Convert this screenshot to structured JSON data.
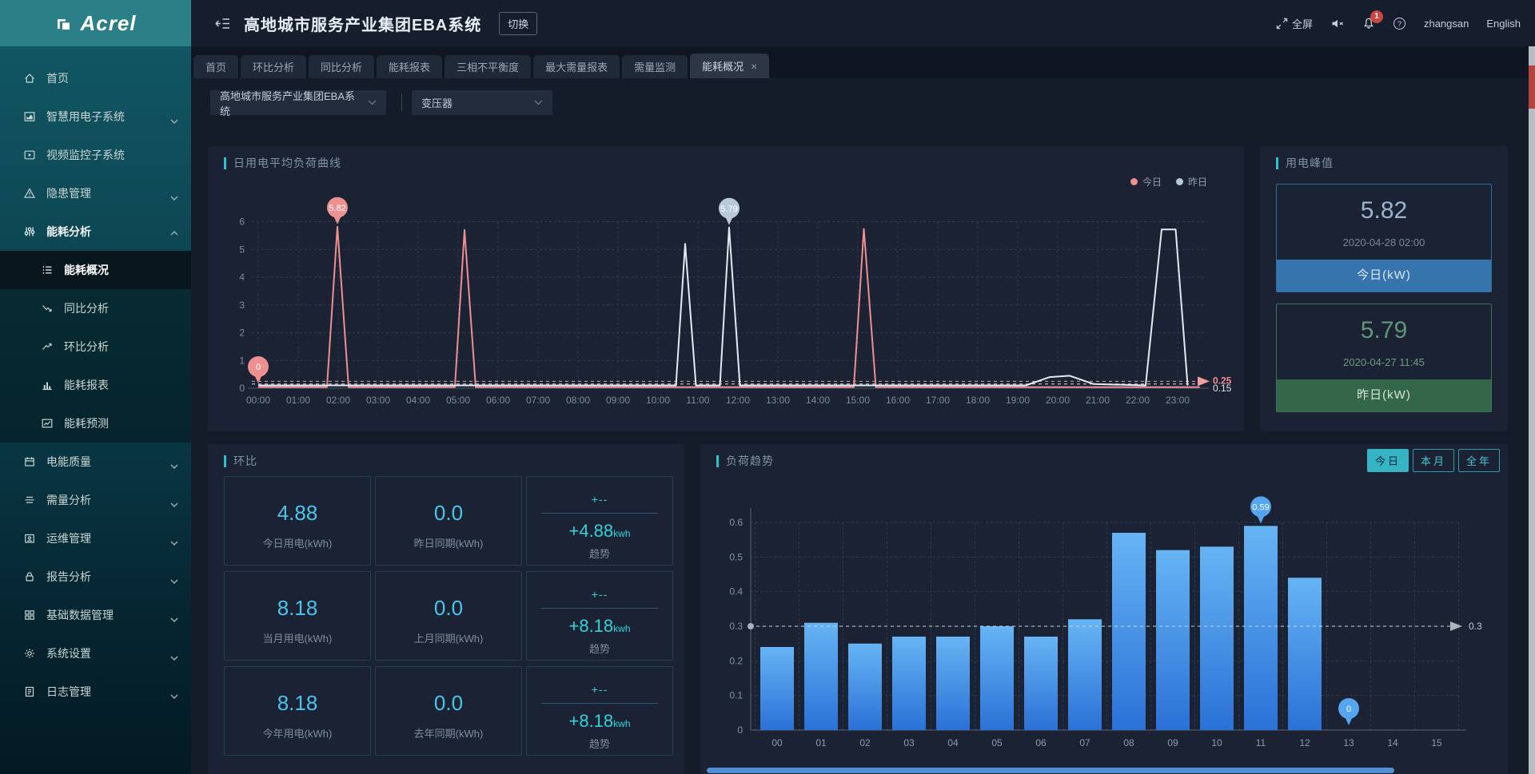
{
  "brand": {
    "name": "Acrel"
  },
  "header": {
    "title": "高地城市服务产业集团EBA系统",
    "switch_label": "切换",
    "fullscreen_label": "全屏",
    "notification_count": "1",
    "username": "zhangsan",
    "language": "English"
  },
  "tabs": [
    {
      "key": "home",
      "label": "首页"
    },
    {
      "key": "mom-analysis",
      "label": "环比分析"
    },
    {
      "key": "yoy-analysis",
      "label": "同比分析"
    },
    {
      "key": "energy-report",
      "label": "能耗报表"
    },
    {
      "key": "three-phase-imbalance",
      "label": "三相不平衡度"
    },
    {
      "key": "max-demand-report",
      "label": "最大需量报表"
    },
    {
      "key": "demand-monitor",
      "label": "需量监测"
    },
    {
      "key": "energy-overview",
      "label": "能耗概况",
      "active": true,
      "closable": true
    }
  ],
  "filters": [
    {
      "key": "system",
      "value": "高地城市服务产业集团EBA系统"
    },
    {
      "key": "device",
      "value": "变压器"
    }
  ],
  "sidebar": {
    "items": [
      {
        "key": "home",
        "icon": "home",
        "label": "首页"
      },
      {
        "key": "smart-power",
        "icon": "area-chart",
        "label": "智慧用电子系统",
        "expandable": true
      },
      {
        "key": "video-monitor",
        "icon": "video",
        "label": "视频监控子系统"
      },
      {
        "key": "hazard",
        "icon": "warning",
        "label": "隐患管理",
        "expandable": true
      },
      {
        "key": "energy-analysis",
        "icon": "equalizer",
        "label": "能耗分析",
        "expandable": true,
        "expanded": true,
        "children": [
          {
            "key": "energy-overview",
            "icon": "list",
            "label": "能耗概况",
            "active": true
          },
          {
            "key": "yoy-analysis",
            "icon": "trend-down",
            "label": "同比分析"
          },
          {
            "key": "mom-analysis",
            "icon": "trend-up",
            "label": "环比分析"
          },
          {
            "key": "energy-report",
            "icon": "bar-chart",
            "label": "能耗报表"
          },
          {
            "key": "energy-forecast",
            "icon": "forecast",
            "label": "能耗预测"
          }
        ]
      },
      {
        "key": "power-quality",
        "icon": "power-quality",
        "label": "电能质量",
        "expandable": true
      },
      {
        "key": "demand-analysis",
        "icon": "demand",
        "label": "需量分析",
        "expandable": true
      },
      {
        "key": "ops-management",
        "icon": "ops",
        "label": "运维管理",
        "expandable": true
      },
      {
        "key": "report-analysis",
        "icon": "report",
        "label": "报告分析",
        "expandable": true
      },
      {
        "key": "base-data",
        "icon": "base-data",
        "label": "基础数据管理",
        "expandable": true
      },
      {
        "key": "system-settings",
        "icon": "settings",
        "label": "系统设置",
        "expandable": true
      },
      {
        "key": "log-management",
        "icon": "log",
        "label": "日志管理",
        "expandable": true
      }
    ]
  },
  "panels": {
    "load_curve": {
      "title": "日用电平均负荷曲线",
      "legend": [
        {
          "label": "今日",
          "color": "#ef8f8f"
        },
        {
          "label": "昨日",
          "color": "#bac9da"
        }
      ]
    },
    "peak": {
      "title": "用电峰值",
      "cards": [
        {
          "value": "5.82",
          "time": "2020-04-28 02:00",
          "label": "今日(kW)",
          "accent": "#3674ad"
        },
        {
          "value": "5.79",
          "time": "2020-04-27 11:45",
          "label": "昨日(kW)",
          "accent": "#34664a"
        }
      ]
    },
    "huanbi": {
      "title": "环比",
      "cards": [
        {
          "kind": "value",
          "value": "4.88",
          "label": "今日用电(kWh)"
        },
        {
          "kind": "value",
          "value": "0.0",
          "label": "昨日同期(kWh)"
        },
        {
          "kind": "trend",
          "top": "+--",
          "value": "+4.88",
          "unit": "kwh",
          "label": "趋势"
        },
        {
          "kind": "value",
          "value": "8.18",
          "label": "当月用电(kWh)"
        },
        {
          "kind": "value",
          "value": "0.0",
          "label": "上月同期(kWh)"
        },
        {
          "kind": "trend",
          "top": "+--",
          "value": "+8.18",
          "unit": "kwh",
          "label": "趋势"
        },
        {
          "kind": "value",
          "value": "8.18",
          "label": "今年用电(kWh)"
        },
        {
          "kind": "value",
          "value": "0.0",
          "label": "去年同期(kWh)"
        },
        {
          "kind": "trend",
          "top": "+--",
          "value": "+8.18",
          "unit": "kwh",
          "label": "趋势"
        }
      ]
    },
    "load_trend": {
      "title": "负荷趋势",
      "buttons": [
        {
          "label": "今日",
          "active": true
        },
        {
          "label": "本月"
        },
        {
          "label": "全年"
        }
      ]
    }
  },
  "chart_data": [
    {
      "type": "line",
      "title": "日用电平均负荷曲线",
      "x_ticks": [
        "00:00",
        "01:00",
        "02:00",
        "03:00",
        "04:00",
        "05:00",
        "06:00",
        "07:00",
        "08:00",
        "09:00",
        "10:00",
        "11:00",
        "12:00",
        "13:00",
        "14:00",
        "15:00",
        "16:00",
        "17:00",
        "18:00",
        "19:00",
        "20:00",
        "21:00",
        "22:00",
        "23:00"
      ],
      "y_ticks": [
        "0",
        "1",
        "2",
        "3",
        "4",
        "5",
        "6"
      ],
      "ylim": [
        0,
        6
      ],
      "grid": "dashed",
      "legend_position": "top-right",
      "series": [
        {
          "name": "今日",
          "color": "#ef8f8f",
          "average": 0.25,
          "points": [
            [
              0,
              0.04
            ],
            [
              1.72,
              0.04
            ],
            [
              1.98,
              5.82
            ],
            [
              2.26,
              0.04
            ],
            [
              4.92,
              0.04
            ],
            [
              5.16,
              5.7
            ],
            [
              5.44,
              0.04
            ],
            [
              14.9,
              0.04
            ],
            [
              15.15,
              5.74
            ],
            [
              15.45,
              0.04
            ],
            [
              23.55,
              0.04
            ]
          ],
          "markers": [
            {
              "x": 0,
              "value": 0,
              "label": "0"
            },
            {
              "x": 1.98,
              "value": 5.82,
              "label": "5.82"
            }
          ]
        },
        {
          "name": "昨日",
          "color": "#e3ebf2",
          "average": 0.15,
          "points": [
            [
              0,
              0.1
            ],
            [
              10.45,
              0.1
            ],
            [
              10.68,
              5.2
            ],
            [
              10.95,
              0.1
            ],
            [
              11.55,
              0.1
            ],
            [
              11.78,
              5.79
            ],
            [
              12.05,
              0.1
            ],
            [
              19.2,
              0.1
            ],
            [
              19.8,
              0.4
            ],
            [
              20.3,
              0.45
            ],
            [
              20.9,
              0.15
            ],
            [
              22.2,
              0.1
            ],
            [
              22.6,
              5.72
            ],
            [
              22.95,
              5.72
            ],
            [
              23.25,
              0.1
            ]
          ],
          "markers": [
            {
              "x": 11.78,
              "value": 5.79,
              "label": "5.79"
            }
          ]
        }
      ],
      "avg_labels": [
        {
          "text": "0.25",
          "color": "#ef8f8f"
        },
        {
          "text": "0.15",
          "color": "#d7e1ea"
        }
      ]
    },
    {
      "type": "bar",
      "title": "负荷趋势",
      "categories": [
        "00",
        "01",
        "02",
        "03",
        "04",
        "05",
        "06",
        "07",
        "08",
        "09",
        "10",
        "11",
        "12",
        "13",
        "14",
        "15"
      ],
      "values": [
        0.24,
        0.31,
        0.25,
        0.27,
        0.27,
        0.3,
        0.27,
        0.32,
        0.57,
        0.52,
        0.53,
        0.59,
        0.44,
        0,
        0,
        0
      ],
      "y_ticks": [
        "0",
        "0.1",
        "0.2",
        "0.3",
        "0.4",
        "0.5",
        "0.6"
      ],
      "ylim": [
        0,
        0.6
      ],
      "grid": "dashed",
      "reference_line": {
        "value": 0.3,
        "label": "0.3"
      },
      "markers": [
        {
          "category": "11",
          "value": 0.59,
          "label": "0.59"
        },
        {
          "category": "13",
          "value": 0,
          "label": "0"
        }
      ],
      "bar_color_top": "#66b4f4",
      "bar_color_bottom": "#2b71d7",
      "marker_color": "#55a5f0"
    }
  ]
}
